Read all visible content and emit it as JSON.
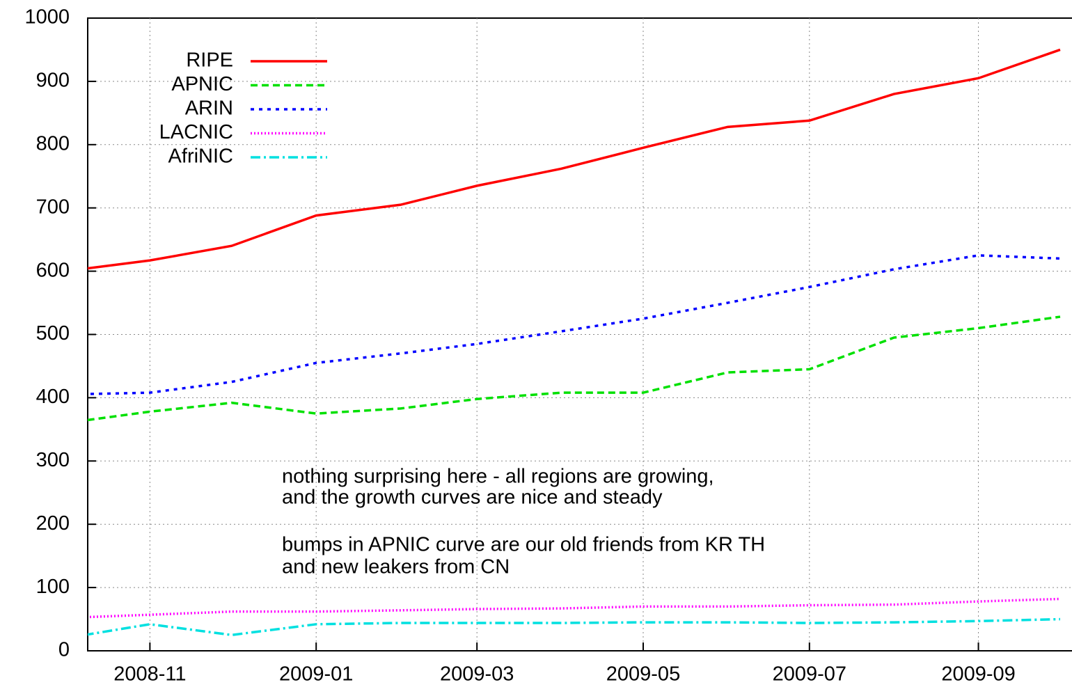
{
  "chart_data": {
    "type": "line",
    "x": [
      "2008-10",
      "2008-11",
      "2008-12",
      "2009-01",
      "2009-02",
      "2009-03",
      "2009-04",
      "2009-05",
      "2009-06",
      "2009-07",
      "2009-08",
      "2009-09",
      "2009-10"
    ],
    "series": [
      {
        "name": "RIPE",
        "color": "#ff0000",
        "values": [
          600,
          617,
          640,
          688,
          705,
          735,
          762,
          795,
          828,
          838,
          880,
          905,
          950
        ]
      },
      {
        "name": "APNIC",
        "color": "#00e000",
        "values": [
          360,
          378,
          392,
          375,
          383,
          398,
          408,
          408,
          440,
          445,
          495,
          510,
          528
        ]
      },
      {
        "name": "ARIN",
        "color": "#0000ff",
        "values": [
          405,
          408,
          425,
          455,
          470,
          485,
          505,
          525,
          550,
          575,
          603,
          625,
          620
        ]
      },
      {
        "name": "LACNIC",
        "color": "#ff00ff",
        "values": [
          52,
          57,
          62,
          62,
          64,
          66,
          67,
          70,
          70,
          72,
          73,
          78,
          82
        ]
      },
      {
        "name": "AfriNIC",
        "color": "#00e0e0",
        "values": [
          20,
          42,
          25,
          42,
          44,
          44,
          44,
          45,
          45,
          44,
          45,
          47,
          50
        ]
      }
    ],
    "xlim": [
      "2008-10",
      "2009-10"
    ],
    "xticks": [
      "2008-11",
      "2009-01",
      "2009-03",
      "2009-05",
      "2009-07",
      "2009-09"
    ],
    "ylim": [
      0,
      1000
    ],
    "yticks": [
      0,
      100,
      200,
      300,
      400,
      500,
      600,
      700,
      800,
      900,
      1000
    ],
    "grid": true,
    "legend": "top-left",
    "annotations": [
      "nothing surprising here - all regions are growing,",
      "and the growth curves are nice and steady",
      "bumps in APNIC curve are our old friends from KR  TH",
      "and new leakers from CN"
    ]
  }
}
